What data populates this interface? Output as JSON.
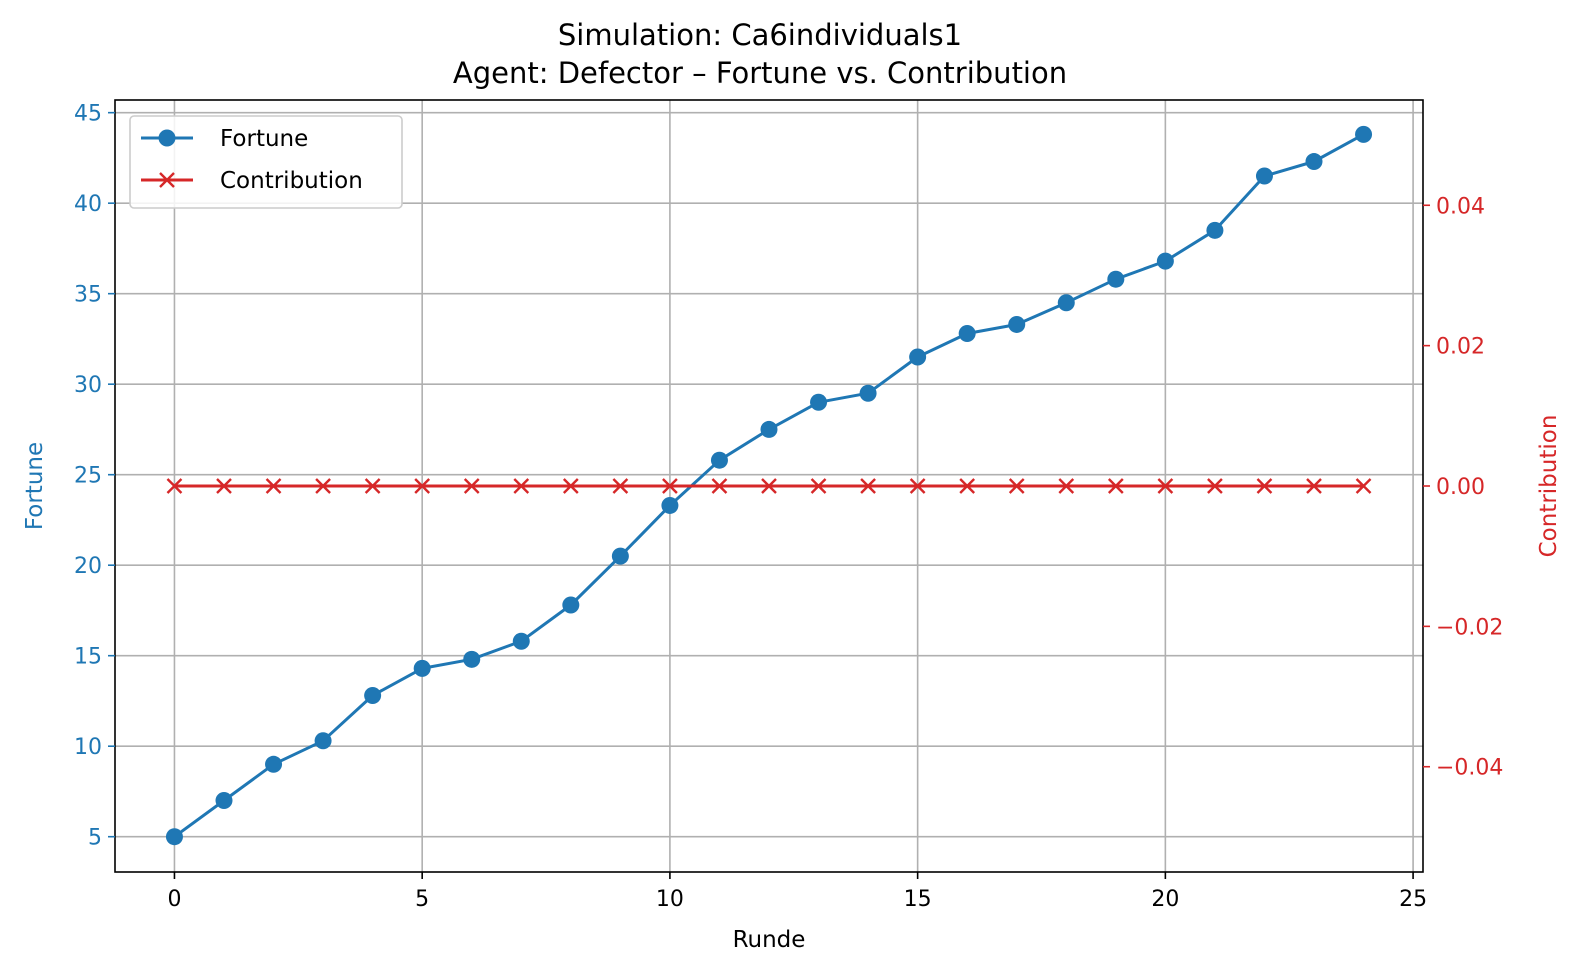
{
  "chart_data": {
    "type": "line",
    "title": "Simulation: Ca6individuals1",
    "subtitle": "Agent: Defector – Fortune vs. Contribution",
    "xlabel": "Runde",
    "ylabel_left": "Fortune",
    "ylabel_right": "Contribution",
    "x": [
      0,
      1,
      2,
      3,
      4,
      5,
      6,
      7,
      8,
      9,
      10,
      11,
      12,
      13,
      14,
      15,
      16,
      17,
      18,
      19,
      20,
      21,
      22,
      23,
      24
    ],
    "x_ticks": [
      0,
      5,
      10,
      15,
      20,
      25
    ],
    "x_tick_labels": [
      "0",
      "5",
      "10",
      "15",
      "20",
      "25"
    ],
    "xlim": [
      -1.2,
      25.2
    ],
    "y_left_ticks": [
      5,
      10,
      15,
      20,
      25,
      30,
      35,
      40,
      45
    ],
    "y_left_tick_labels": [
      "5",
      "10",
      "15",
      "20",
      "25",
      "30",
      "35",
      "40",
      "45"
    ],
    "ylim_left": [
      3.05,
      45.7
    ],
    "y_right_ticks": [
      -0.04,
      -0.02,
      0.0,
      0.02,
      0.04
    ],
    "y_right_tick_labels": [
      "−0.04",
      "−0.02",
      "0.00",
      "0.02",
      "0.04"
    ],
    "ylim_right": [
      -0.055,
      0.055
    ],
    "grid": true,
    "legend_position": "top-left",
    "series": [
      {
        "name": "Fortune",
        "axis": "left",
        "color": "#1f77b4",
        "marker": "circle",
        "values": [
          5.0,
          7.0,
          9.0,
          10.3,
          12.8,
          14.3,
          14.8,
          15.8,
          17.8,
          20.5,
          23.3,
          25.8,
          27.5,
          29.0,
          29.5,
          31.5,
          32.8,
          33.3,
          34.5,
          35.8,
          36.8,
          38.5,
          41.5,
          42.3,
          43.8
        ]
      },
      {
        "name": "Contribution",
        "axis": "right",
        "color": "#d62728",
        "marker": "x",
        "values": [
          0,
          0,
          0,
          0,
          0,
          0,
          0,
          0,
          0,
          0,
          0,
          0,
          0,
          0,
          0,
          0,
          0,
          0,
          0,
          0,
          0,
          0,
          0,
          0,
          0
        ]
      }
    ]
  }
}
